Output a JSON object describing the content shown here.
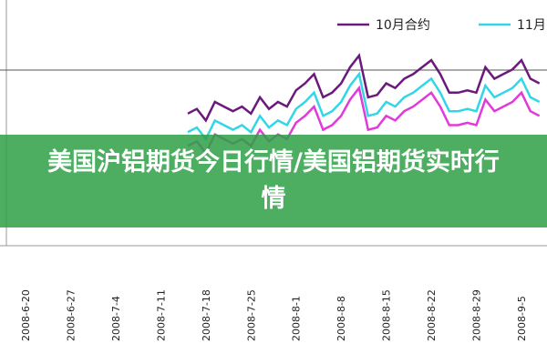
{
  "chart_data": {
    "type": "line",
    "banner_title": "美国沪铝期货今日行情/美国铝期货实时行情",
    "categories": [
      "2008-6-20",
      null,
      null,
      null,
      null,
      "2008-6-27",
      null,
      null,
      null,
      null,
      "2008-7-4",
      null,
      null,
      null,
      null,
      "2008-7-11",
      null,
      null,
      null,
      null,
      "2008-7-18",
      null,
      null,
      null,
      null,
      "2008-7-25",
      null,
      null,
      null,
      null,
      "2008-8-1",
      null,
      null,
      null,
      null,
      "2008-8-8",
      null,
      null,
      null,
      null,
      "2008-8-15",
      null,
      null,
      null,
      null,
      "2008-8-22",
      null,
      null,
      null,
      null,
      "2008-8-29",
      null,
      null,
      null,
      null,
      "2008-9-5",
      null,
      null
    ],
    "ylim": [
      0,
      100
    ],
    "series": [
      {
        "name": "10月合约",
        "color": "#6a1a7a",
        "values": [
          null,
          null,
          null,
          null,
          null,
          null,
          null,
          null,
          null,
          null,
          null,
          null,
          null,
          null,
          null,
          null,
          null,
          null,
          55,
          57,
          52,
          60,
          58,
          56,
          58,
          55,
          62,
          57,
          60,
          58,
          65,
          68,
          72,
          62,
          64,
          68,
          75,
          80,
          62,
          63,
          68,
          66,
          70,
          72,
          75,
          78,
          72,
          64,
          64,
          65,
          64,
          75,
          70,
          72,
          74,
          78,
          70,
          68
        ]
      },
      {
        "name": "11月",
        "color": "#33d6e6",
        "values": [
          null,
          null,
          null,
          null,
          null,
          null,
          null,
          null,
          null,
          null,
          null,
          null,
          null,
          null,
          null,
          null,
          null,
          null,
          47,
          49,
          44,
          52,
          50,
          48,
          50,
          47,
          54,
          49,
          52,
          50,
          57,
          60,
          64,
          54,
          56,
          60,
          67,
          72,
          54,
          55,
          60,
          58,
          62,
          64,
          67,
          70,
          64,
          56,
          56,
          57,
          56,
          67,
          62,
          64,
          66,
          70,
          62,
          60
        ]
      },
      {
        "color": "#e03ad8",
        "values": [
          null,
          null,
          null,
          null,
          null,
          null,
          null,
          null,
          null,
          null,
          null,
          null,
          null,
          null,
          null,
          null,
          null,
          null,
          41,
          43,
          38,
          46,
          44,
          42,
          44,
          41,
          48,
          43,
          46,
          44,
          51,
          54,
          58,
          48,
          50,
          54,
          61,
          66,
          48,
          49,
          54,
          52,
          56,
          58,
          61,
          64,
          58,
          50,
          50,
          51,
          50,
          61,
          56,
          58,
          60,
          64,
          56,
          54
        ]
      }
    ]
  }
}
